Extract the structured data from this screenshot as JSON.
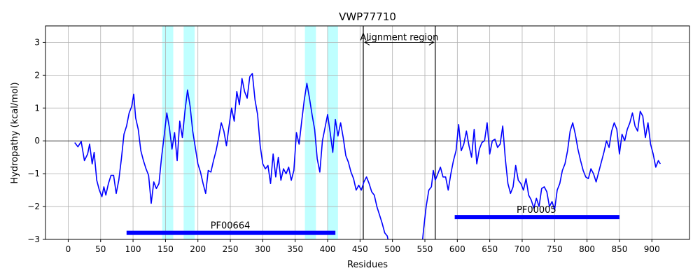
{
  "chart_data": {
    "type": "line",
    "title": "VWP77710",
    "xlabel": "Residues",
    "ylabel": "Hydropathy (kcal/mol)",
    "xlim": [
      -35,
      958
    ],
    "ylim": [
      -3,
      3.5
    ],
    "xticks": [
      0,
      50,
      100,
      150,
      200,
      250,
      300,
      350,
      400,
      450,
      500,
      550,
      600,
      650,
      700,
      750,
      800,
      850,
      900
    ],
    "yticks": [
      -3,
      -2,
      -1,
      0,
      1,
      2,
      3
    ],
    "grid": true,
    "colors": {
      "line": "#0000ff",
      "highlight": "#00ffff",
      "domain_bar": "#0000ff",
      "region_lines": "#000000"
    },
    "series": [
      {
        "values": [
          [
            10,
            -0.05
          ],
          [
            15,
            -0.18
          ],
          [
            20,
            -0.02
          ],
          [
            25,
            -0.6
          ],
          [
            30,
            -0.4
          ],
          [
            33,
            -0.1
          ],
          [
            37,
            -0.7
          ],
          [
            40,
            -0.35
          ],
          [
            44,
            -1.2
          ],
          [
            48,
            -1.5
          ],
          [
            52,
            -1.7
          ],
          [
            55,
            -1.4
          ],
          [
            58,
            -1.65
          ],
          [
            62,
            -1.3
          ],
          [
            66,
            -1.05
          ],
          [
            70,
            -1.05
          ],
          [
            74,
            -1.6
          ],
          [
            78,
            -1.2
          ],
          [
            82,
            -0.55
          ],
          [
            86,
            0.2
          ],
          [
            90,
            0.45
          ],
          [
            94,
            0.85
          ],
          [
            98,
            1.05
          ],
          [
            101,
            1.42
          ],
          [
            104,
            0.7
          ],
          [
            108,
            0.35
          ],
          [
            112,
            -0.3
          ],
          [
            116,
            -0.6
          ],
          [
            120,
            -0.85
          ],
          [
            124,
            -1.05
          ],
          [
            128,
            -1.9
          ],
          [
            132,
            -1.25
          ],
          [
            136,
            -1.45
          ],
          [
            140,
            -1.3
          ],
          [
            144,
            -0.5
          ],
          [
            148,
            0.15
          ],
          [
            152,
            0.85
          ],
          [
            156,
            0.4
          ],
          [
            160,
            -0.25
          ],
          [
            164,
            0.25
          ],
          [
            168,
            -0.6
          ],
          [
            172,
            0.6
          ],
          [
            176,
            0.1
          ],
          [
            180,
            0.9
          ],
          [
            184,
            1.55
          ],
          [
            188,
            1.05
          ],
          [
            192,
            0.3
          ],
          [
            196,
            -0.2
          ],
          [
            200,
            -0.7
          ],
          [
            204,
            -0.95
          ],
          [
            208,
            -1.3
          ],
          [
            212,
            -1.6
          ],
          [
            216,
            -0.9
          ],
          [
            220,
            -0.95
          ],
          [
            224,
            -0.6
          ],
          [
            228,
            -0.3
          ],
          [
            232,
            0.1
          ],
          [
            236,
            0.55
          ],
          [
            240,
            0.3
          ],
          [
            244,
            -0.15
          ],
          [
            248,
            0.45
          ],
          [
            252,
            1.0
          ],
          [
            256,
            0.6
          ],
          [
            260,
            1.5
          ],
          [
            264,
            1.1
          ],
          [
            268,
            1.9
          ],
          [
            272,
            1.5
          ],
          [
            276,
            1.3
          ],
          [
            280,
            1.95
          ],
          [
            284,
            2.05
          ],
          [
            288,
            1.25
          ],
          [
            292,
            0.8
          ],
          [
            296,
            -0.15
          ],
          [
            300,
            -0.7
          ],
          [
            304,
            -0.85
          ],
          [
            308,
            -0.75
          ],
          [
            312,
            -1.3
          ],
          [
            316,
            -0.4
          ],
          [
            320,
            -1.1
          ],
          [
            324,
            -0.5
          ],
          [
            328,
            -1.2
          ],
          [
            332,
            -0.85
          ],
          [
            336,
            -1.0
          ],
          [
            340,
            -0.8
          ],
          [
            344,
            -1.2
          ],
          [
            348,
            -0.9
          ],
          [
            352,
            0.25
          ],
          [
            356,
            -0.1
          ],
          [
            360,
            0.6
          ],
          [
            364,
            1.25
          ],
          [
            368,
            1.75
          ],
          [
            372,
            1.3
          ],
          [
            376,
            0.8
          ],
          [
            380,
            0.35
          ],
          [
            384,
            -0.55
          ],
          [
            388,
            -0.95
          ],
          [
            392,
            0.0
          ],
          [
            396,
            0.4
          ],
          [
            400,
            0.8
          ],
          [
            404,
            0.25
          ],
          [
            408,
            -0.35
          ],
          [
            412,
            0.65
          ],
          [
            416,
            0.15
          ],
          [
            420,
            0.55
          ],
          [
            424,
            0.1
          ],
          [
            428,
            -0.45
          ],
          [
            432,
            -0.65
          ],
          [
            436,
            -0.95
          ],
          [
            440,
            -1.15
          ],
          [
            444,
            -1.5
          ],
          [
            448,
            -1.35
          ],
          [
            452,
            -1.5
          ],
          [
            456,
            -1.25
          ],
          [
            460,
            -1.1
          ],
          [
            464,
            -1.3
          ],
          [
            468,
            -1.55
          ],
          [
            472,
            -1.65
          ],
          [
            476,
            -2.0
          ],
          [
            480,
            -2.25
          ],
          [
            484,
            -2.5
          ],
          [
            488,
            -2.8
          ],
          [
            492,
            -2.9
          ],
          [
            496,
            -3.3
          ],
          [
            500,
            -3.3
          ],
          [
            545,
            -3.3
          ],
          [
            548,
            -2.7
          ],
          [
            552,
            -2.0
          ],
          [
            556,
            -1.5
          ],
          [
            560,
            -1.4
          ],
          [
            563,
            -0.9
          ],
          [
            566,
            -1.2
          ],
          [
            570,
            -1.0
          ],
          [
            574,
            -0.8
          ],
          [
            578,
            -1.1
          ],
          [
            582,
            -1.1
          ],
          [
            586,
            -1.5
          ],
          [
            590,
            -1.0
          ],
          [
            594,
            -0.6
          ],
          [
            598,
            -0.3
          ],
          [
            602,
            0.5
          ],
          [
            606,
            -0.3
          ],
          [
            610,
            -0.1
          ],
          [
            614,
            0.3
          ],
          [
            618,
            -0.15
          ],
          [
            622,
            -0.5
          ],
          [
            626,
            0.35
          ],
          [
            630,
            -0.7
          ],
          [
            634,
            -0.25
          ],
          [
            638,
            -0.05
          ],
          [
            642,
            0.0
          ],
          [
            646,
            0.55
          ],
          [
            650,
            -0.4
          ],
          [
            654,
            0.0
          ],
          [
            658,
            0.05
          ],
          [
            662,
            -0.2
          ],
          [
            666,
            -0.1
          ],
          [
            670,
            0.45
          ],
          [
            674,
            -0.55
          ],
          [
            678,
            -1.3
          ],
          [
            682,
            -1.6
          ],
          [
            686,
            -1.4
          ],
          [
            690,
            -0.75
          ],
          [
            694,
            -1.2
          ],
          [
            698,
            -1.3
          ],
          [
            702,
            -1.5
          ],
          [
            706,
            -1.15
          ],
          [
            710,
            -1.65
          ],
          [
            714,
            -1.8
          ],
          [
            718,
            -2.05
          ],
          [
            722,
            -1.75
          ],
          [
            726,
            -2.0
          ],
          [
            730,
            -1.45
          ],
          [
            734,
            -1.4
          ],
          [
            738,
            -1.55
          ],
          [
            742,
            -2.0
          ],
          [
            746,
            -1.85
          ],
          [
            750,
            -2.1
          ],
          [
            754,
            -1.5
          ],
          [
            758,
            -1.3
          ],
          [
            762,
            -0.9
          ],
          [
            766,
            -0.7
          ],
          [
            770,
            -0.3
          ],
          [
            774,
            0.3
          ],
          [
            778,
            0.55
          ],
          [
            782,
            0.2
          ],
          [
            786,
            -0.25
          ],
          [
            790,
            -0.6
          ],
          [
            794,
            -0.9
          ],
          [
            798,
            -1.1
          ],
          [
            802,
            -1.15
          ],
          [
            806,
            -0.85
          ],
          [
            810,
            -1.0
          ],
          [
            814,
            -1.25
          ],
          [
            818,
            -0.95
          ],
          [
            822,
            -0.65
          ],
          [
            826,
            -0.35
          ],
          [
            830,
            0.0
          ],
          [
            834,
            -0.2
          ],
          [
            838,
            0.3
          ],
          [
            842,
            0.55
          ],
          [
            846,
            0.35
          ],
          [
            850,
            -0.4
          ],
          [
            854,
            0.2
          ],
          [
            858,
            0.0
          ],
          [
            862,
            0.35
          ],
          [
            866,
            0.55
          ],
          [
            870,
            0.85
          ],
          [
            874,
            0.45
          ],
          [
            878,
            0.3
          ],
          [
            882,
            0.9
          ],
          [
            886,
            0.75
          ],
          [
            890,
            0.1
          ],
          [
            894,
            0.55
          ],
          [
            898,
            -0.1
          ],
          [
            902,
            -0.4
          ],
          [
            906,
            -0.8
          ],
          [
            910,
            -0.6
          ],
          [
            913,
            -0.7
          ]
        ]
      }
    ],
    "highlight_bands": [
      [
        145,
        162
      ],
      [
        178,
        195
      ],
      [
        365,
        382
      ],
      [
        400,
        416
      ]
    ],
    "region_lines": [
      455,
      566
    ],
    "alignment_region": {
      "label": "Alignment region",
      "y": 3.0,
      "x_start": 455,
      "x_end": 566
    },
    "domains": [
      {
        "label": "PF00664",
        "start": 90,
        "end": 412,
        "y": -2.8,
        "label_x": 250
      },
      {
        "label": "PF00005",
        "start": 596,
        "end": 850,
        "y": -2.32,
        "label_x": 722
      }
    ]
  }
}
